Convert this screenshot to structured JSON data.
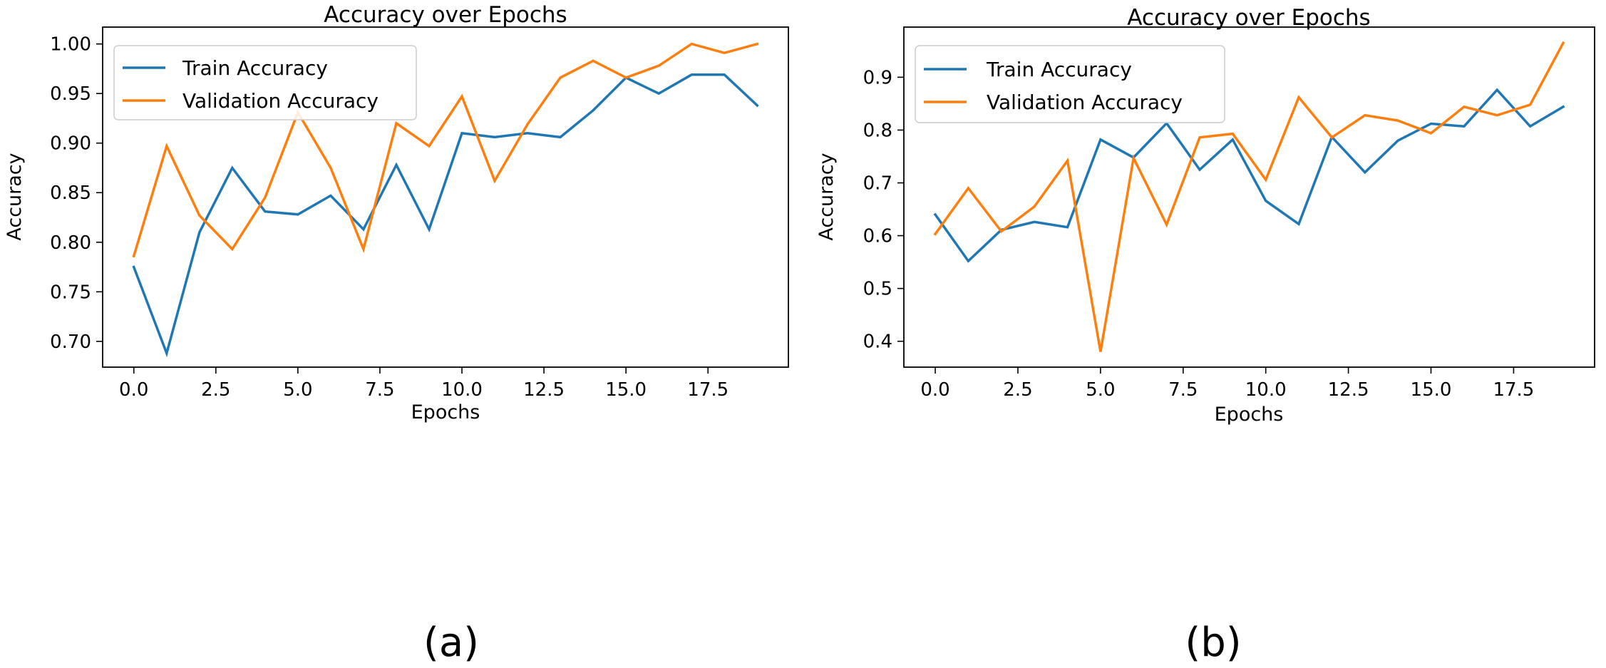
{
  "chart_data": [
    {
      "type": "line",
      "title": "Accuracy over Epochs",
      "xlabel": "Epochs",
      "ylabel": "Accuracy",
      "caption": "(a)",
      "xlim": [
        -0.95,
        19.95
      ],
      "ylim": [
        0.674,
        1.017
      ],
      "xticks": [
        0.0,
        2.5,
        5.0,
        7.5,
        10.0,
        12.5,
        15.0,
        17.5
      ],
      "xtick_labels": [
        "0.0",
        "2.5",
        "5.0",
        "7.5",
        "10.0",
        "12.5",
        "15.0",
        "17.5"
      ],
      "yticks": [
        0.7,
        0.75,
        0.8,
        0.85,
        0.9,
        0.95,
        1.0
      ],
      "ytick_labels": [
        "0.70",
        "0.75",
        "0.80",
        "0.85",
        "0.90",
        "0.95",
        "1.00"
      ],
      "legend_position": "upper-left",
      "grid": false,
      "x": [
        0,
        1,
        2,
        3,
        4,
        5,
        6,
        7,
        8,
        9,
        10,
        11,
        12,
        13,
        14,
        15,
        16,
        17,
        18,
        19
      ],
      "series": [
        {
          "name": "Train Accuracy",
          "color": "#1f77b4",
          "values": [
            0.775,
            0.688,
            0.81,
            0.875,
            0.831,
            0.828,
            0.847,
            0.813,
            0.878,
            0.813,
            0.91,
            0.906,
            0.91,
            0.906,
            0.933,
            0.966,
            0.95,
            0.969,
            0.969,
            0.938
          ]
        },
        {
          "name": "Validation Accuracy",
          "color": "#ff7f0e",
          "values": [
            0.786,
            0.897,
            0.827,
            0.793,
            0.845,
            0.931,
            0.875,
            0.793,
            0.92,
            0.897,
            0.947,
            0.862,
            0.919,
            0.966,
            0.983,
            0.966,
            0.978,
            1.0,
            0.991,
            1.0
          ]
        }
      ]
    },
    {
      "type": "line",
      "title": "Accuracy over Epochs",
      "xlabel": "Epochs",
      "ylabel": "Accuracy",
      "caption": "(b)",
      "xlim": [
        -0.95,
        19.95
      ],
      "ylim": [
        0.351,
        0.995
      ],
      "xticks": [
        0.0,
        2.5,
        5.0,
        7.5,
        10.0,
        12.5,
        15.0,
        17.5
      ],
      "xtick_labels": [
        "0.0",
        "2.5",
        "5.0",
        "7.5",
        "10.0",
        "12.5",
        "15.0",
        "17.5"
      ],
      "yticks": [
        0.4,
        0.5,
        0.6,
        0.7,
        0.8,
        0.9
      ],
      "ytick_labels": [
        "0.4",
        "0.5",
        "0.6",
        "0.7",
        "0.8",
        "0.9"
      ],
      "legend_position": "upper-left",
      "grid": false,
      "x": [
        0,
        1,
        2,
        3,
        4,
        5,
        6,
        7,
        8,
        9,
        10,
        11,
        12,
        13,
        14,
        15,
        16,
        17,
        18,
        19
      ],
      "series": [
        {
          "name": "Train Accuracy",
          "color": "#1f77b4",
          "values": [
            0.64,
            0.552,
            0.611,
            0.626,
            0.616,
            0.782,
            0.748,
            0.813,
            0.725,
            0.782,
            0.666,
            0.622,
            0.787,
            0.72,
            0.78,
            0.812,
            0.807,
            0.876,
            0.807,
            0.844
          ]
        },
        {
          "name": "Validation Accuracy",
          "color": "#ff7f0e",
          "values": [
            0.603,
            0.69,
            0.608,
            0.655,
            0.742,
            0.38,
            0.747,
            0.621,
            0.786,
            0.793,
            0.706,
            0.862,
            0.786,
            0.828,
            0.818,
            0.794,
            0.844,
            0.828,
            0.848,
            0.965
          ]
        }
      ]
    }
  ]
}
